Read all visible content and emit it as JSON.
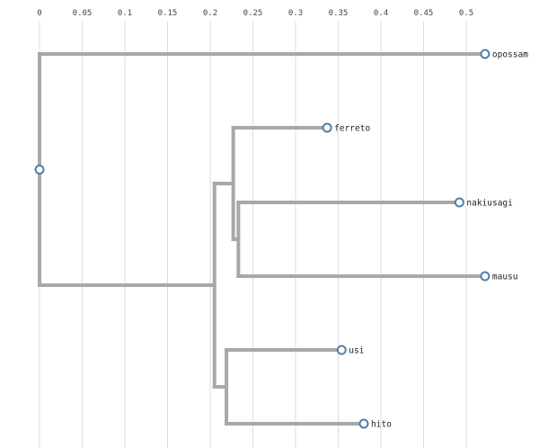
{
  "chart_data": {
    "type": "dendrogram",
    "orientation": "horizontal",
    "x_ticks": [
      "0",
      "0.05",
      "0.1",
      "0.15",
      "0.2",
      "0.25",
      "0.3",
      "0.35",
      "0.4",
      "0.45",
      "0.5"
    ],
    "xlim": [
      0,
      0.5
    ],
    "grid": true,
    "leaves": [
      {
        "name": "opossam",
        "distance": 0.522
      },
      {
        "name": "ferreto",
        "distance": 0.337
      },
      {
        "name": "nakiusagi",
        "distance": 0.492
      },
      {
        "name": "mausu",
        "distance": 0.522
      },
      {
        "name": "usi",
        "distance": 0.354
      },
      {
        "name": "hito",
        "distance": 0.38
      }
    ],
    "tree": {
      "distance": 0,
      "children": [
        {
          "leaf": "opossam"
        },
        {
          "distance": 0.205,
          "children": [
            {
              "distance": 0.227,
              "children": [
                {
                  "leaf": "ferreto"
                },
                {
                  "distance": 0.233,
                  "children": [
                    {
                      "leaf": "nakiusagi"
                    },
                    {
                      "leaf": "mausu"
                    }
                  ]
                }
              ]
            },
            {
              "distance": 0.219,
              "children": [
                {
                  "leaf": "usi"
                },
                {
                  "leaf": "hito"
                }
              ]
            }
          ]
        }
      ]
    },
    "colors": {
      "branch": "#a8a8a8",
      "node_stroke": "#4f7fa8",
      "grid": "#dddddd"
    }
  }
}
